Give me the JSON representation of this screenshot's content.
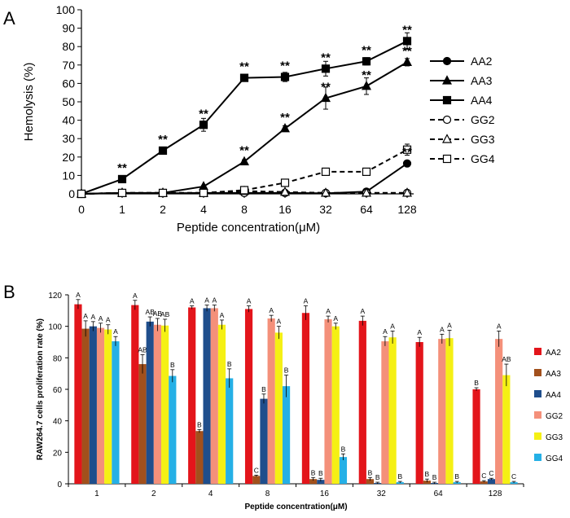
{
  "chart_data": [
    {
      "panel": "A",
      "type": "line",
      "ylabel": "Hemolysis (%)",
      "xlabel": "Peptide concentration(μM)",
      "categories": [
        "0",
        "1",
        "2",
        "4",
        "8",
        "16",
        "32",
        "64",
        "128"
      ],
      "yticks": [
        "0",
        "10",
        "20",
        "30",
        "40",
        "50",
        "60",
        "70",
        "80",
        "90",
        "100"
      ],
      "ylim": [
        0,
        100
      ],
      "series": [
        {
          "name": "AA2",
          "marker": "circle",
          "fill": "solid",
          "dash": false,
          "values": [
            0,
            0.5,
            0.3,
            0.5,
            0.5,
            0.5,
            0.3,
            1.2,
            16.5
          ],
          "err": [
            0,
            0,
            0,
            0,
            0,
            0,
            0,
            0,
            1
          ]
        },
        {
          "name": "AA3",
          "marker": "triangle",
          "fill": "solid",
          "dash": false,
          "values": [
            0,
            0.5,
            0.5,
            4,
            17.5,
            35.5,
            52,
            58.5,
            71.5
          ],
          "err": [
            0,
            0,
            0,
            0.5,
            1,
            1.5,
            6,
            4.5,
            2
          ]
        },
        {
          "name": "AA4",
          "marker": "square",
          "fill": "solid",
          "dash": false,
          "values": [
            0,
            8,
            23.5,
            37.5,
            63,
            63.5,
            68,
            72,
            83
          ],
          "err": [
            0,
            1,
            1,
            3.5,
            1.5,
            2.5,
            4,
            2,
            4.5
          ]
        },
        {
          "name": "GG2",
          "marker": "circle",
          "fill": "open",
          "dash": true,
          "values": [
            0,
            0.5,
            0.5,
            0.5,
            0.5,
            0.5,
            0.5,
            0.5,
            0.5
          ],
          "err": [
            0,
            0,
            0,
            0,
            0,
            0,
            0,
            0,
            0
          ]
        },
        {
          "name": "GG3",
          "marker": "triangle",
          "fill": "open",
          "dash": true,
          "values": [
            0,
            0.5,
            0.5,
            0.5,
            1.5,
            1,
            0.5,
            0.5,
            0.5
          ],
          "err": [
            0,
            0,
            0,
            0,
            0,
            0,
            0,
            0,
            0
          ]
        },
        {
          "name": "GG4",
          "marker": "square",
          "fill": "open",
          "dash": true,
          "values": [
            0,
            0.5,
            0.5,
            0.5,
            2,
            6,
            12,
            12,
            24
          ],
          "err": [
            0,
            0,
            0,
            0,
            0.5,
            1,
            1.5,
            1,
            3
          ]
        }
      ],
      "annotations": [
        {
          "category": "1",
          "y": 8,
          "text": "**"
        },
        {
          "category": "2",
          "y": 23.5,
          "text": "**"
        },
        {
          "category": "4",
          "y": 37.5,
          "text": "**"
        },
        {
          "category": "8",
          "y": 63,
          "text": "**"
        },
        {
          "category": "8",
          "y": 17.5,
          "text": "**"
        },
        {
          "category": "16",
          "y": 63.5,
          "text": "**"
        },
        {
          "category": "16",
          "y": 35.5,
          "text": "**"
        },
        {
          "category": "32",
          "y": 68,
          "text": "**"
        },
        {
          "category": "32",
          "y": 52,
          "text": "**"
        },
        {
          "category": "64",
          "y": 72,
          "text": "**"
        },
        {
          "category": "64",
          "y": 58.5,
          "text": "**"
        },
        {
          "category": "128",
          "y": 83,
          "text": "**"
        },
        {
          "category": "128",
          "y": 71.5,
          "text": "**"
        },
        {
          "category": "128",
          "y": 16.5,
          "text": "**"
        }
      ]
    },
    {
      "panel": "B",
      "type": "bar",
      "ylabel": "RAW264.7 cells proliferation rate (%)",
      "xlabel": "Peptide concentration(μM)",
      "categories": [
        "1",
        "2",
        "4",
        "8",
        "16",
        "32",
        "64",
        "128"
      ],
      "yticks": [
        "0",
        "20",
        "40",
        "60",
        "80",
        "100",
        "120"
      ],
      "ylim": [
        0,
        120
      ],
      "series": [
        {
          "name": "AA2",
          "color": "#e3151b",
          "values": [
            114,
            113.5,
            112,
            111,
            108.5,
            103.5,
            90,
            60
          ],
          "err": [
            3,
            3,
            1,
            2,
            4.5,
            3,
            3,
            1
          ],
          "letters": [
            "A",
            "A",
            "A",
            "A",
            "A",
            "A",
            "A",
            "B"
          ]
        },
        {
          "name": "AA3",
          "color": "#a2501c",
          "values": [
            98.5,
            76,
            33.5,
            5,
            3,
            3,
            2,
            1.5
          ],
          "err": [
            5,
            6,
            1,
            0.5,
            1,
            1,
            1,
            0.5
          ],
          "letters": [
            "A",
            "AB",
            "B",
            "C",
            "B",
            "B",
            "B",
            "C"
          ]
        },
        {
          "name": "AA4",
          "color": "#1f4e8c",
          "values": [
            100,
            103,
            111.5,
            54,
            2.5,
            0.5,
            0.5,
            3
          ],
          "err": [
            3,
            3,
            2,
            3,
            1,
            0.5,
            0.5,
            0.5
          ],
          "letters": [
            "A",
            "AB",
            "A",
            "B",
            "B",
            "B",
            "B",
            "C"
          ]
        },
        {
          "name": "GG2",
          "color": "#f4907a",
          "values": [
            99,
            101,
            111.5,
            105,
            104.5,
            90.5,
            92,
            92
          ],
          "err": [
            3,
            4,
            2,
            2,
            2,
            3,
            3,
            5
          ],
          "letters": [
            "A",
            "AB",
            "A",
            "A",
            "A",
            "A",
            "A",
            "A"
          ]
        },
        {
          "name": "GG3",
          "color": "#f5f014",
          "values": [
            98,
            100.5,
            101,
            96,
            100,
            93,
            92.5,
            69
          ],
          "err": [
            3,
            4,
            3,
            4,
            2,
            4,
            5,
            7
          ],
          "letters": [
            "A",
            "AB",
            "A",
            "A",
            "A",
            "A",
            "A",
            "AB"
          ]
        },
        {
          "name": "GG4",
          "color": "#25b0e6",
          "values": [
            90.5,
            68.5,
            67,
            62,
            17,
            1,
            1,
            1
          ],
          "err": [
            3,
            4,
            6,
            7,
            2,
            0.5,
            0.5,
            0.5
          ],
          "letters": [
            "A",
            "B",
            "B",
            "B",
            "B",
            "B",
            "B",
            "C"
          ]
        }
      ]
    }
  ],
  "labels": {
    "panelA": "A",
    "panelB": "B"
  }
}
